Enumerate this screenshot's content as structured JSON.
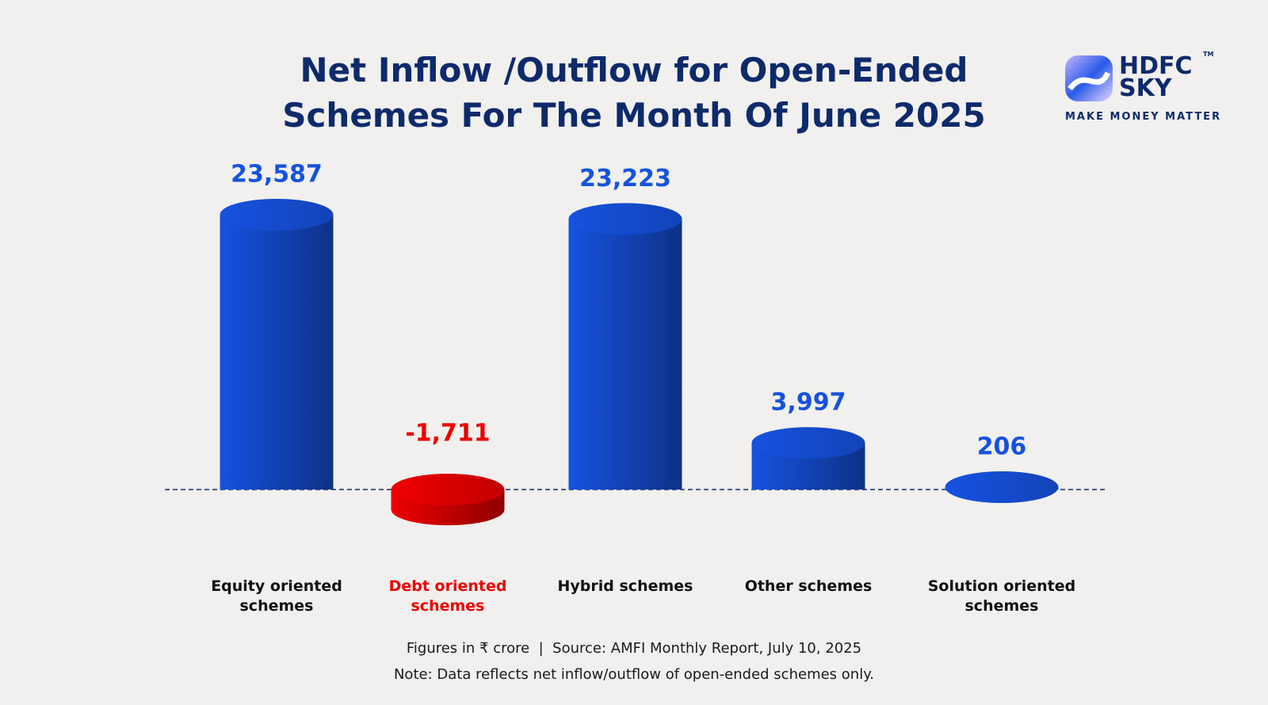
{
  "chart_data": {
    "type": "bar",
    "title": "Net Inflow /Outflow for Open-Ended Schemes For The Month Of June 2025",
    "categories": [
      "Equity oriented schemes",
      "Debt oriented schemes",
      "Hybrid schemes",
      "Other schemes",
      "Solution oriented schemes"
    ],
    "values": [
      23587,
      -1711,
      23223,
      3997,
      206
    ],
    "value_labels": [
      "23,587",
      "-1,711",
      "23,223",
      "3,997",
      "206"
    ],
    "colors": [
      "#1652e0",
      "#ee0000",
      "#1652e0",
      "#1652e0",
      "#1652e0"
    ],
    "source": "Figures in ₹ crore  |  Source: AMFI Monthly Report, July 10, 2025",
    "note": "Note: Data reflects net inflow/outflow of open-ended schemes only.",
    "logo": {
      "name_line1": "HDFC",
      "name_line2": "SKY",
      "trademark": "TM",
      "tagline": "MAKE MONEY MATTER"
    }
  }
}
